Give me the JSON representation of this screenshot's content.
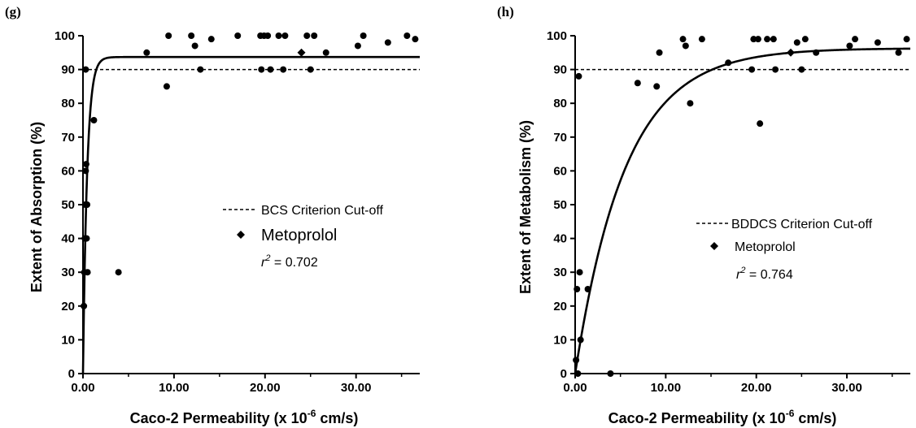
{
  "chart_data": [
    {
      "panel_label": "(g)",
      "type": "scatter",
      "xlabel": "Caco-2 Permeability (x 10",
      "xlabel_exp": "-6",
      "xlabel_unit": " cm/s)",
      "ylabel": "Extent of Absorption (%)",
      "xlim": [
        0,
        37
      ],
      "ylim": [
        0,
        100
      ],
      "x_ticks": [
        0,
        10,
        20,
        30
      ],
      "x_tick_labels": [
        "0.00",
        "10.00",
        "20.00",
        "30.00"
      ],
      "y_ticks": [
        0,
        10,
        20,
        30,
        40,
        50,
        60,
        70,
        80,
        90,
        100
      ],
      "y_tick_labels": [
        "0",
        "10",
        "20",
        "30",
        "40",
        "50",
        "60",
        "70",
        "80",
        "90",
        "100"
      ],
      "cutoff": 90,
      "legend": {
        "cutoff_label": "BCS Criterion Cut-off",
        "marker_label": "Metoprolol",
        "r2_prefix": "r",
        "r2_exp": "2",
        "r2_value": " = 0.702"
      },
      "fit": {
        "plateau": 93.7,
        "k": 2.2
      },
      "metoprolol": {
        "x": 24.0,
        "y": 95
      },
      "points": [
        {
          "x": 0.1,
          "y": 20
        },
        {
          "x": 0.15,
          "y": 30
        },
        {
          "x": 0.2,
          "y": 40
        },
        {
          "x": 0.25,
          "y": 50
        },
        {
          "x": 0.3,
          "y": 60
        },
        {
          "x": 0.35,
          "y": 62
        },
        {
          "x": 0.3,
          "y": 90
        },
        {
          "x": 0.4,
          "y": 40
        },
        {
          "x": 0.45,
          "y": 50
        },
        {
          "x": 0.5,
          "y": 30
        },
        {
          "x": 1.2,
          "y": 75
        },
        {
          "x": 3.9,
          "y": 30
        },
        {
          "x": 7.0,
          "y": 95
        },
        {
          "x": 9.2,
          "y": 85
        },
        {
          "x": 9.4,
          "y": 100
        },
        {
          "x": 11.9,
          "y": 100
        },
        {
          "x": 12.3,
          "y": 97
        },
        {
          "x": 12.9,
          "y": 90
        },
        {
          "x": 14.1,
          "y": 99
        },
        {
          "x": 17.0,
          "y": 100
        },
        {
          "x": 19.5,
          "y": 100
        },
        {
          "x": 19.6,
          "y": 90
        },
        {
          "x": 19.9,
          "y": 100
        },
        {
          "x": 20.3,
          "y": 100
        },
        {
          "x": 20.6,
          "y": 90
        },
        {
          "x": 21.5,
          "y": 100
        },
        {
          "x": 22.0,
          "y": 90
        },
        {
          "x": 22.2,
          "y": 100
        },
        {
          "x": 24.6,
          "y": 100
        },
        {
          "x": 25.0,
          "y": 90
        },
        {
          "x": 25.4,
          "y": 100
        },
        {
          "x": 26.7,
          "y": 95
        },
        {
          "x": 30.2,
          "y": 97
        },
        {
          "x": 30.8,
          "y": 100
        },
        {
          "x": 33.5,
          "y": 98
        },
        {
          "x": 35.6,
          "y": 100
        },
        {
          "x": 36.5,
          "y": 99
        }
      ]
    },
    {
      "panel_label": "(h)",
      "type": "scatter",
      "xlabel": "Caco-2 Permeability (x 10",
      "xlabel_exp": "-6",
      "xlabel_unit": " cm/s)",
      "ylabel": "Extent of Metabolism (%)",
      "xlim": [
        0,
        37
      ],
      "ylim": [
        0,
        100
      ],
      "x_ticks": [
        0,
        10,
        20,
        30
      ],
      "x_tick_labels": [
        "0.00",
        "10.00",
        "20.00",
        "30.00"
      ],
      "y_ticks": [
        0,
        10,
        20,
        30,
        40,
        50,
        60,
        70,
        80,
        90,
        100
      ],
      "y_tick_labels": [
        "0",
        "10",
        "20",
        "30",
        "40",
        "50",
        "60",
        "70",
        "80",
        "90",
        "100"
      ],
      "cutoff": 90,
      "legend": {
        "cutoff_label": "BDDCS Criterion Cut-off",
        "marker_label": "Metoprolol",
        "r2_prefix": "r",
        "r2_exp": "2",
        "r2_value": " = 0.764"
      },
      "fit": {
        "plateau": 96.3,
        "k": 0.18
      },
      "metoprolol": {
        "x": 23.8,
        "y": 95
      },
      "points": [
        {
          "x": 0.1,
          "y": 4
        },
        {
          "x": 0.2,
          "y": 25
        },
        {
          "x": 0.3,
          "y": 0
        },
        {
          "x": 0.4,
          "y": 88
        },
        {
          "x": 0.5,
          "y": 30
        },
        {
          "x": 0.6,
          "y": 10
        },
        {
          "x": 1.4,
          "y": 25
        },
        {
          "x": 3.9,
          "y": 0
        },
        {
          "x": 6.9,
          "y": 86
        },
        {
          "x": 9.0,
          "y": 85
        },
        {
          "x": 9.3,
          "y": 95
        },
        {
          "x": 11.9,
          "y": 99
        },
        {
          "x": 12.2,
          "y": 97
        },
        {
          "x": 12.7,
          "y": 80
        },
        {
          "x": 14.0,
          "y": 99
        },
        {
          "x": 16.9,
          "y": 92
        },
        {
          "x": 19.5,
          "y": 90
        },
        {
          "x": 19.7,
          "y": 99
        },
        {
          "x": 20.2,
          "y": 99
        },
        {
          "x": 20.4,
          "y": 74
        },
        {
          "x": 21.2,
          "y": 99
        },
        {
          "x": 21.9,
          "y": 99
        },
        {
          "x": 22.1,
          "y": 90
        },
        {
          "x": 24.5,
          "y": 98
        },
        {
          "x": 25.0,
          "y": 90
        },
        {
          "x": 25.4,
          "y": 99
        },
        {
          "x": 26.6,
          "y": 95
        },
        {
          "x": 30.3,
          "y": 97
        },
        {
          "x": 30.9,
          "y": 99
        },
        {
          "x": 33.4,
          "y": 98
        },
        {
          "x": 35.7,
          "y": 95
        },
        {
          "x": 36.6,
          "y": 99
        }
      ]
    }
  ]
}
